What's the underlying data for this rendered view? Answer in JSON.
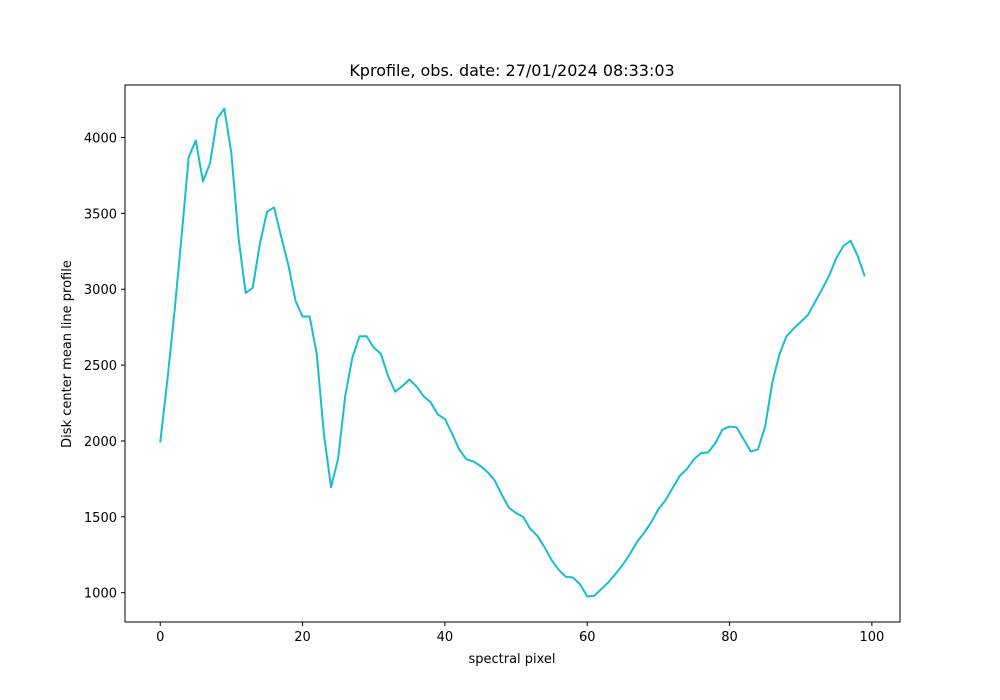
{
  "chart_data": {
    "type": "line",
    "title": "Kprofile, obs. date: 27/01/2024 08:33:03",
    "xlabel": "spectral pixel",
    "ylabel": "Disk center mean line profile",
    "color": "#17becf",
    "x": [
      0,
      1,
      2,
      3,
      4,
      5,
      6,
      7,
      8,
      9,
      10,
      11,
      12,
      13,
      14,
      15,
      16,
      17,
      18,
      19,
      20,
      21,
      22,
      23,
      24,
      25,
      26,
      27,
      28,
      29,
      30,
      31,
      32,
      33,
      34,
      35,
      36,
      37,
      38,
      39,
      40,
      41,
      42,
      43,
      44,
      45,
      46,
      47,
      48,
      49,
      50,
      51,
      52,
      53,
      54,
      55,
      56,
      57,
      58,
      59,
      60,
      61,
      62,
      63,
      64,
      65,
      66,
      67,
      68,
      69,
      70,
      71,
      72,
      73,
      74,
      75,
      76,
      77,
      78,
      79,
      80,
      81,
      82,
      83,
      84,
      85,
      86,
      87,
      88,
      89,
      90,
      91,
      92,
      93,
      94,
      95,
      96,
      97,
      98,
      99
    ],
    "values": [
      1990,
      2400,
      2850,
      3350,
      3870,
      3980,
      3710,
      3830,
      4125,
      4190,
      3895,
      3340,
      2975,
      3010,
      3300,
      3510,
      3540,
      3345,
      3160,
      2925,
      2820,
      2820,
      2570,
      2045,
      1695,
      1885,
      2300,
      2550,
      2690,
      2690,
      2615,
      2575,
      2430,
      2325,
      2360,
      2405,
      2360,
      2295,
      2255,
      2175,
      2145,
      2050,
      1945,
      1880,
      1865,
      1835,
      1795,
      1740,
      1645,
      1560,
      1525,
      1500,
      1420,
      1375,
      1300,
      1215,
      1150,
      1105,
      1100,
      1055,
      975,
      980,
      1025,
      1070,
      1125,
      1185,
      1255,
      1335,
      1395,
      1465,
      1550,
      1610,
      1690,
      1770,
      1815,
      1880,
      1920,
      1925,
      1985,
      2075,
      2095,
      2090,
      2010,
      1930,
      1945,
      2095,
      2385,
      2570,
      2690,
      2740,
      2785,
      2830,
      2915,
      3000,
      3090,
      3205,
      3285,
      3320,
      3220,
      3085
    ],
    "xlim": [
      -4.95,
      103.95
    ],
    "ylim": [
      807,
      4346
    ],
    "xticks": [
      0,
      20,
      40,
      60,
      80,
      100
    ],
    "yticks": [
      1000,
      1500,
      2000,
      2500,
      3000,
      3500,
      4000
    ]
  }
}
